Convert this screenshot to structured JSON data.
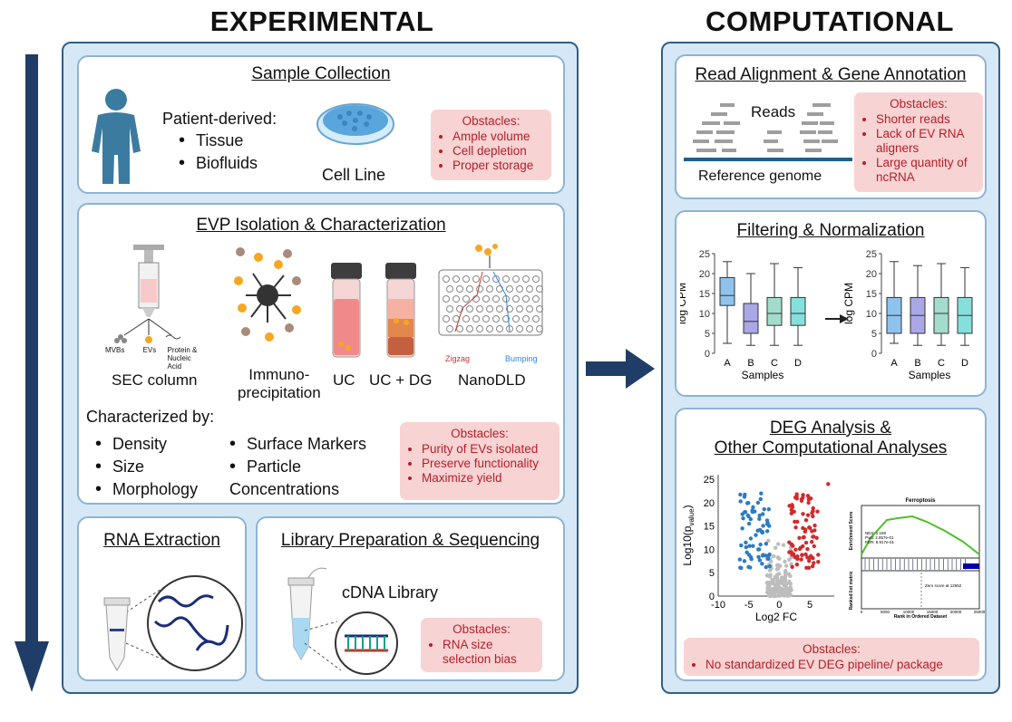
{
  "headings": {
    "experimental": "EXPERIMENTAL",
    "computational": "COMPUTATIONAL"
  },
  "sample": {
    "title": "Sample Collection",
    "patient": "Patient-derived:",
    "items": [
      "Tissue",
      "Biofluids"
    ],
    "cellline": "Cell Line",
    "obstacles": {
      "title": "Obstacles:",
      "items": [
        "Ample volume",
        "Cell depletion",
        "Proper storage"
      ]
    }
  },
  "evp": {
    "title": "EVP Isolation & Characterization",
    "sec_labels": [
      "MVBs",
      "EVs",
      "Protein & Nucleic Acid"
    ],
    "methods": [
      "SEC column",
      "Immuno-\nprecipitation",
      "UC",
      "UC + DG",
      "NanoDLD"
    ],
    "nanodld": {
      "zigzag": "Zigzag",
      "bumping": "Bumping"
    },
    "char_title": "Characterized by:",
    "char_col1": [
      "Density",
      "Size",
      "Morphology"
    ],
    "char_col2": [
      "Surface Markers",
      "Particle\nConcentrations"
    ],
    "obstacles": {
      "title": "Obstacles:",
      "items": [
        "Purity of EVs isolated",
        "Preserve functionality",
        "Maximize yield"
      ]
    }
  },
  "rna": {
    "title": "RNA Extraction"
  },
  "lib": {
    "title": "Library Preparation & Sequencing",
    "cdna": "cDNA Library",
    "obstacles": {
      "title": "Obstacles:",
      "items": [
        "RNA size selection bias"
      ]
    }
  },
  "align": {
    "title": "Read Alignment & Gene Annotation",
    "reads": "Reads",
    "ref": "Reference genome",
    "obstacles": {
      "title": "Obstacles:",
      "items": [
        "Shorter reads",
        "Lack of EV RNA aligners",
        "Large quantity of ncRNA"
      ]
    }
  },
  "filter": {
    "title": "Filtering & Normalization",
    "ylabel": "log CPM",
    "xlabel": "Samples",
    "ticks": [
      "25",
      "20",
      "15",
      "10",
      "5",
      "0"
    ],
    "cats": [
      "A",
      "B",
      "C",
      "D"
    ]
  },
  "deg": {
    "title": "DEG Analysis &\nOther Computational Analyses",
    "volcano": {
      "ylabel": "Log10(p",
      "ylabel_sub": "value",
      "ylabel_end": ")",
      "xlabel": "Log2 FC",
      "yticks": [
        "25",
        "20",
        "15",
        "10",
        "5",
        "0"
      ],
      "xticks": [
        "-10",
        "-5",
        "0",
        "5"
      ]
    },
    "gsea": {
      "title": "Ferroptosis",
      "ylabel1": "Enrichment Score",
      "ylabel2": "Ranked list metric",
      "stats": [
        "NES: 1.169",
        "Pval: 2.857e-01",
        "FDR: 8.917e-01"
      ],
      "zero": "Zero score at 12652",
      "xlabel": "Rank in Ordered Dataset",
      "xticks": [
        "0",
        "5000",
        "10000",
        "15000",
        "20000",
        "25000"
      ]
    },
    "obstacles": {
      "title": "Obstacles:",
      "items": [
        "No standardized EV DEG pipeline/ package"
      ]
    }
  },
  "chart_data": [
    {
      "type": "box",
      "title": "",
      "xlabel": "Samples",
      "ylabel": "log CPM",
      "ylim": [
        0,
        25
      ],
      "categories": [
        "A",
        "B",
        "C",
        "D"
      ],
      "boxes": [
        {
          "min": 2.5,
          "q1": 12,
          "median": 14.5,
          "q3": 19,
          "max": 23
        },
        {
          "min": 2,
          "q1": 5,
          "median": 8,
          "q3": 12.5,
          "max": 20
        },
        {
          "min": 2,
          "q1": 7,
          "median": 10,
          "q3": 14,
          "max": 22.5
        },
        {
          "min": 2,
          "q1": 7,
          "median": 10,
          "q3": 14,
          "max": 21.5
        }
      ],
      "colors": [
        "#8fc3ec",
        "#a9a7e6",
        "#a3dccc",
        "#85e0dd"
      ]
    },
    {
      "type": "box",
      "title": "",
      "xlabel": "Samples",
      "ylabel": "log CPM",
      "ylim": [
        0,
        25
      ],
      "categories": [
        "A",
        "B",
        "C",
        "D"
      ],
      "boxes": [
        {
          "min": 2.5,
          "q1": 5,
          "median": 9.5,
          "q3": 14,
          "max": 23
        },
        {
          "min": 2,
          "q1": 5,
          "median": 9.5,
          "q3": 14,
          "max": 22
        },
        {
          "min": 2,
          "q1": 5,
          "median": 10,
          "q3": 14,
          "max": 22.5
        },
        {
          "min": 2,
          "q1": 5,
          "median": 9.5,
          "q3": 14,
          "max": 21.5
        }
      ],
      "colors": [
        "#8fc3ec",
        "#a9a7e6",
        "#a3dccc",
        "#85e0dd"
      ]
    },
    {
      "type": "scatter",
      "title": "",
      "xlabel": "Log2 FC",
      "ylabel": "Log10(pvalue)",
      "xlim": [
        -10,
        9
      ],
      "ylim": [
        0,
        26
      ],
      "groups": [
        "down",
        "not significant",
        "up"
      ],
      "colors": [
        "#2b7bc4",
        "#bdbdbd",
        "#d22a2a"
      ]
    },
    {
      "type": "line",
      "title": "Ferroptosis",
      "ylabel": "Enrichment Score",
      "xlabel": "Rank in Ordered Dataset",
      "xlim": [
        0,
        25000
      ],
      "color": "#4fbf2a"
    }
  ],
  "colors": {
    "arrow": "#1f3d66",
    "outer_border": "#2e5f8a",
    "outer_bg": "#d6e8f6",
    "obstacle_bg": "#f8d3d3",
    "obstacle_text": "#b3202a"
  }
}
